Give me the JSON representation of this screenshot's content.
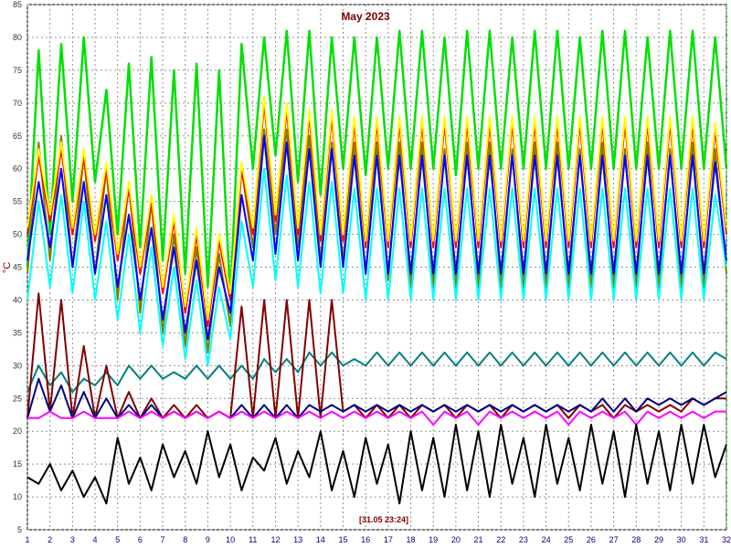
{
  "chart_data": {
    "type": "line",
    "title": "May 2023",
    "ylabel": "°C",
    "xlabel": "",
    "cursor_label": "[31.05 23:24]",
    "xlim": [
      1,
      32
    ],
    "ylim": [
      5,
      85
    ],
    "x_ticks": [
      1,
      2,
      3,
      4,
      5,
      6,
      7,
      8,
      9,
      10,
      11,
      12,
      13,
      14,
      15,
      16,
      17,
      18,
      19,
      20,
      21,
      22,
      23,
      24,
      25,
      26,
      27,
      28,
      29,
      30,
      31,
      32
    ],
    "y_ticks": [
      5,
      10,
      15,
      20,
      25,
      30,
      35,
      40,
      45,
      50,
      55,
      60,
      65,
      70,
      75,
      80,
      85
    ],
    "grid": true,
    "x": [
      1,
      1.5,
      2,
      2.5,
      3,
      3.5,
      4,
      4.5,
      5,
      5.5,
      6,
      6.5,
      7,
      7.5,
      8,
      8.5,
      9,
      9.5,
      10,
      10.5,
      11,
      11.5,
      12,
      12.5,
      13,
      13.5,
      14,
      14.5,
      15,
      15.5,
      16,
      16.5,
      17,
      17.5,
      18,
      18.5,
      19,
      19.5,
      20,
      20.5,
      21,
      21.5,
      22,
      22.5,
      23,
      23.5,
      24,
      24.5,
      25,
      25.5,
      26,
      26.5,
      27,
      27.5,
      28,
      28.5,
      29,
      29.5,
      30,
      30.5,
      31,
      31.5,
      32
    ],
    "series": [
      {
        "color": "#00e000",
        "values": [
          45,
          78,
          50,
          79,
          55,
          80,
          58,
          72,
          50,
          76,
          48,
          77,
          46,
          75,
          44,
          76,
          42,
          75,
          40,
          79,
          60,
          80,
          62,
          81,
          58,
          81,
          56,
          80,
          60,
          80,
          59,
          80,
          60,
          81,
          60,
          81,
          60,
          80,
          59,
          81,
          60,
          81,
          60,
          80,
          60,
          81,
          60,
          81,
          60,
          80,
          60,
          81,
          60,
          81,
          60,
          80,
          60,
          81,
          60,
          81,
          60,
          80,
          60
        ]
      },
      {
        "color": "#808000",
        "values": [
          44,
          64,
          46,
          65,
          45,
          62,
          44,
          60,
          40,
          58,
          38,
          55,
          35,
          50,
          33,
          48,
          32,
          47,
          36,
          60,
          48,
          66,
          50,
          66,
          48,
          65,
          46,
          64,
          46,
          64,
          44,
          64,
          43,
          64,
          42,
          64,
          42,
          63,
          42,
          64,
          42,
          64,
          42,
          63,
          42,
          64,
          42,
          64,
          42,
          63,
          42,
          64,
          42,
          63,
          42,
          64,
          42,
          63,
          42,
          64,
          42,
          63,
          44
        ]
      },
      {
        "color": "#ff0000",
        "values": [
          50,
          62,
          52,
          63,
          50,
          62,
          49,
          60,
          46,
          57,
          44,
          55,
          41,
          52,
          38,
          50,
          36,
          49,
          40,
          60,
          50,
          70,
          52,
          69,
          50,
          68,
          49,
          68,
          49,
          67,
          48,
          67,
          48,
          67,
          48,
          67,
          48,
          67,
          48,
          67,
          48,
          67,
          48,
          67,
          48,
          67,
          48,
          67,
          48,
          67,
          48,
          67,
          48,
          67,
          48,
          67,
          48,
          67,
          48,
          67,
          48,
          66,
          50
        ]
      },
      {
        "color": "#ffff00",
        "values": [
          51,
          63,
          53,
          64,
          51,
          63,
          50,
          61,
          47,
          58,
          45,
          56,
          42,
          53,
          39,
          51,
          37,
          50,
          41,
          61,
          51,
          71,
          53,
          70,
          51,
          69,
          50,
          69,
          50,
          68,
          49,
          68,
          49,
          68,
          49,
          68,
          49,
          68,
          49,
          68,
          49,
          68,
          49,
          68,
          49,
          68,
          49,
          68,
          49,
          68,
          49,
          68,
          49,
          68,
          49,
          68,
          49,
          68,
          49,
          68,
          49,
          67,
          51
        ]
      },
      {
        "color": "#00ffff",
        "values": [
          40,
          55,
          42,
          56,
          41,
          55,
          40,
          52,
          37,
          50,
          35,
          48,
          33,
          45,
          31,
          43,
          30,
          42,
          34,
          52,
          42,
          60,
          43,
          59,
          42,
          58,
          41,
          58,
          41,
          57,
          40,
          57,
          40,
          57,
          40,
          57,
          40,
          57,
          40,
          57,
          40,
          57,
          40,
          57,
          40,
          57,
          40,
          57,
          40,
          57,
          40,
          57,
          40,
          57,
          40,
          57,
          40,
          57,
          40,
          57,
          40,
          56,
          45
        ]
      },
      {
        "color": "#0000ff",
        "values": [
          46,
          58,
          48,
          60,
          45,
          58,
          44,
          56,
          42,
          53,
          40,
          51,
          37,
          48,
          35,
          46,
          34,
          45,
          38,
          56,
          46,
          65,
          47,
          64,
          46,
          63,
          45,
          63,
          45,
          62,
          44,
          62,
          44,
          62,
          44,
          62,
          44,
          62,
          44,
          62,
          44,
          62,
          44,
          62,
          44,
          62,
          44,
          62,
          44,
          62,
          44,
          62,
          44,
          62,
          44,
          62,
          44,
          62,
          44,
          62,
          44,
          61,
          46
        ]
      },
      {
        "color": "#008080",
        "values": [
          26,
          30,
          27,
          29,
          26,
          28,
          27,
          29,
          27,
          30,
          28,
          30,
          28,
          29,
          28,
          30,
          28,
          30,
          28,
          30,
          28,
          31,
          29,
          31,
          29,
          32,
          30,
          32,
          30,
          31,
          30,
          32,
          30,
          32,
          30,
          32,
          30,
          32,
          30,
          32,
          30,
          32,
          30,
          32,
          30,
          32,
          30,
          32,
          30,
          32,
          30,
          32,
          30,
          32,
          30,
          32,
          30,
          32,
          30,
          32,
          30,
          32,
          31
        ]
      },
      {
        "color": "#800000",
        "values": [
          22,
          41,
          23,
          40,
          22,
          33,
          22,
          30,
          22,
          26,
          22,
          25,
          22,
          24,
          22,
          24,
          22,
          23,
          22,
          39,
          22,
          40,
          22,
          40,
          22,
          40,
          22,
          40,
          23,
          24,
          22,
          24,
          22,
          24,
          22,
          24,
          23,
          24,
          22,
          24,
          23,
          24,
          22,
          24,
          23,
          24,
          23,
          24,
          22,
          24,
          23,
          24,
          22,
          24,
          23,
          24,
          23,
          24,
          23,
          25,
          24,
          25,
          25
        ]
      },
      {
        "color": "#000080",
        "values": [
          22,
          28,
          23,
          27,
          22,
          26,
          22,
          25,
          22,
          24,
          22,
          24,
          22,
          23,
          22,
          23,
          22,
          23,
          22,
          24,
          22,
          24,
          22,
          24,
          22,
          24,
          23,
          24,
          23,
          24,
          23,
          24,
          23,
          24,
          23,
          24,
          23,
          24,
          23,
          24,
          23,
          24,
          23,
          24,
          23,
          24,
          23,
          24,
          23,
          24,
          23,
          25,
          23,
          25,
          23,
          25,
          24,
          25,
          24,
          25,
          24,
          25,
          26
        ]
      },
      {
        "color": "#ff00ff",
        "values": [
          22,
          22,
          23,
          22,
          22,
          23,
          22,
          22,
          22,
          23,
          22,
          23,
          22,
          23,
          22,
          23,
          22,
          23,
          22,
          23,
          22,
          23,
          22,
          23,
          22,
          23,
          22,
          23,
          22,
          23,
          22,
          23,
          22,
          23,
          22,
          23,
          21,
          23,
          22,
          23,
          21,
          23,
          22,
          23,
          22,
          23,
          22,
          23,
          21,
          23,
          22,
          23,
          22,
          23,
          21,
          23,
          22,
          23,
          22,
          23,
          22,
          23,
          23
        ]
      },
      {
        "color": "#000000",
        "values": [
          13,
          12,
          15,
          11,
          14,
          10,
          13,
          9,
          19,
          12,
          16,
          11,
          18,
          13,
          17,
          12,
          20,
          13,
          18,
          11,
          16,
          14,
          19,
          12,
          17,
          13,
          20,
          11,
          17,
          10,
          19,
          12,
          18,
          9,
          20,
          11,
          19,
          10,
          21,
          11,
          20,
          10,
          21,
          12,
          19,
          10,
          21,
          12,
          19,
          11,
          21,
          12,
          20,
          10,
          21,
          12,
          20,
          11,
          21,
          12,
          21,
          13,
          18
        ]
      }
    ]
  }
}
